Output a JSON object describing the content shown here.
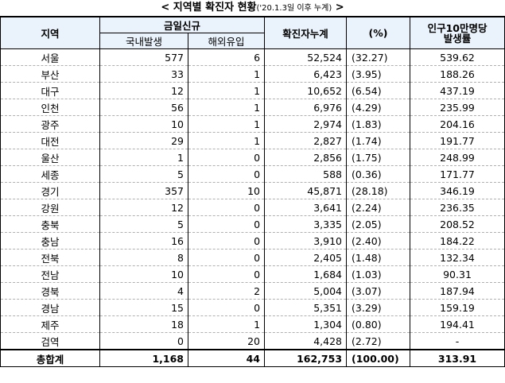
{
  "caption": {
    "prefix": "<",
    "title": "지역별 확진자 현황",
    "subtitle": "('20.1.3일 이후 누계)",
    "suffix": ">"
  },
  "headers": {
    "region": "지역",
    "new_cases": "금일신규",
    "domestic": "국내발생",
    "overseas": "해외유입",
    "cumulative": "확진자누계",
    "percent": "(%)",
    "rate_line1": "인구10만명당",
    "rate_line2": "발생률"
  },
  "rows": [
    {
      "region": "서울",
      "domestic": "577",
      "overseas": "6",
      "cumulative": "52,524",
      "percent": "(32.27)",
      "rate": "539.62"
    },
    {
      "region": "부산",
      "domestic": "33",
      "overseas": "1",
      "cumulative": "6,423",
      "percent": "(3.95)",
      "rate": "188.26"
    },
    {
      "region": "대구",
      "domestic": "12",
      "overseas": "1",
      "cumulative": "10,652",
      "percent": "(6.54)",
      "rate": "437.19"
    },
    {
      "region": "인천",
      "domestic": "56",
      "overseas": "1",
      "cumulative": "6,976",
      "percent": "(4.29)",
      "rate": "235.99"
    },
    {
      "region": "광주",
      "domestic": "10",
      "overseas": "1",
      "cumulative": "2,974",
      "percent": "(1.83)",
      "rate": "204.16"
    },
    {
      "region": "대전",
      "domestic": "29",
      "overseas": "1",
      "cumulative": "2,827",
      "percent": "(1.74)",
      "rate": "191.77"
    },
    {
      "region": "울산",
      "domestic": "1",
      "overseas": "0",
      "cumulative": "2,856",
      "percent": "(1.75)",
      "rate": "248.99"
    },
    {
      "region": "세종",
      "domestic": "5",
      "overseas": "0",
      "cumulative": "588",
      "percent": "(0.36)",
      "rate": "171.77"
    },
    {
      "region": "경기",
      "domestic": "357",
      "overseas": "10",
      "cumulative": "45,871",
      "percent": "(28.18)",
      "rate": "346.19"
    },
    {
      "region": "강원",
      "domestic": "12",
      "overseas": "0",
      "cumulative": "3,641",
      "percent": "(2.24)",
      "rate": "236.35"
    },
    {
      "region": "충북",
      "domestic": "5",
      "overseas": "0",
      "cumulative": "3,335",
      "percent": "(2.05)",
      "rate": "208.52"
    },
    {
      "region": "충남",
      "domestic": "16",
      "overseas": "0",
      "cumulative": "3,910",
      "percent": "(2.40)",
      "rate": "184.22"
    },
    {
      "region": "전북",
      "domestic": "8",
      "overseas": "0",
      "cumulative": "2,405",
      "percent": "(1.48)",
      "rate": "132.34"
    },
    {
      "region": "전남",
      "domestic": "10",
      "overseas": "0",
      "cumulative": "1,684",
      "percent": "(1.03)",
      "rate": "90.31"
    },
    {
      "region": "경북",
      "domestic": "4",
      "overseas": "2",
      "cumulative": "5,004",
      "percent": "(3.07)",
      "rate": "187.94"
    },
    {
      "region": "경남",
      "domestic": "15",
      "overseas": "0",
      "cumulative": "5,351",
      "percent": "(3.29)",
      "rate": "159.19"
    },
    {
      "region": "제주",
      "domestic": "18",
      "overseas": "1",
      "cumulative": "1,304",
      "percent": "(0.80)",
      "rate": "194.41"
    },
    {
      "region": "검역",
      "domestic": "0",
      "overseas": "20",
      "cumulative": "4,428",
      "percent": "(2.72)",
      "rate": "-"
    }
  ],
  "total": {
    "region": "총합계",
    "domestic": "1,168",
    "overseas": "44",
    "cumulative": "162,753",
    "percent": "(100.00)",
    "rate": "313.91"
  },
  "colors": {
    "header_bg": "#eaf3fb",
    "border": "#000000",
    "row_divider": "#b0b0b0"
  }
}
